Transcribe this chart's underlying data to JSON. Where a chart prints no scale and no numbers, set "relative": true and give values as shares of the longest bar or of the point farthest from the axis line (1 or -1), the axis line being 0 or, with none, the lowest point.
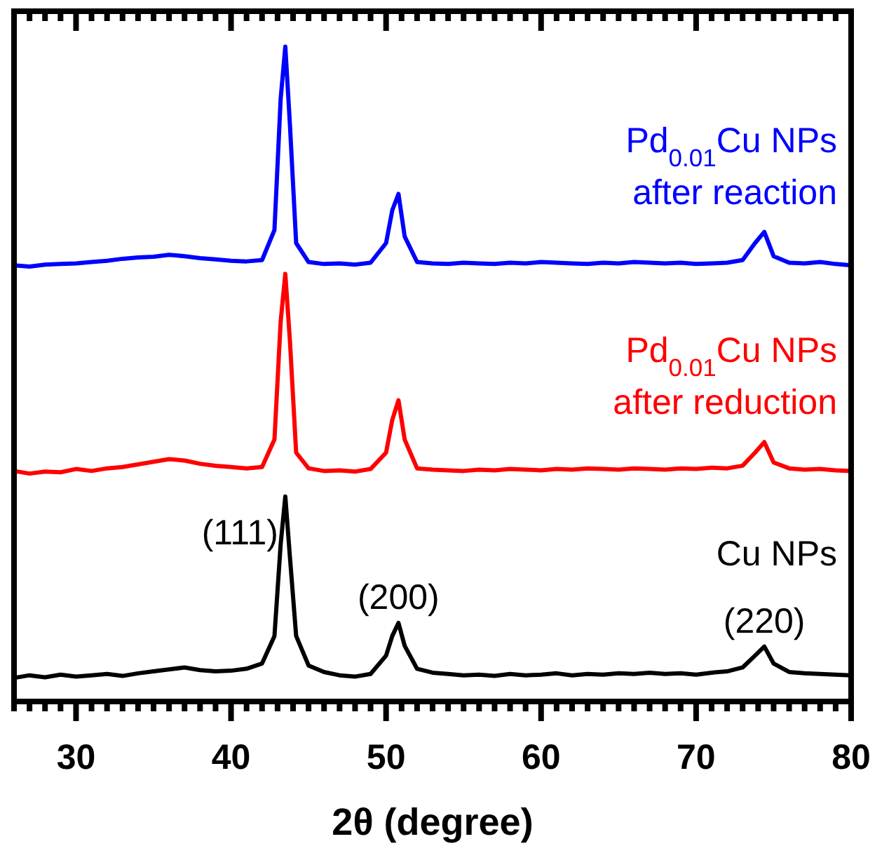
{
  "chart_data": {
    "type": "line",
    "relative": true,
    "xlabel": "2θ (degree)",
    "xlim": [
      26,
      80
    ],
    "xticks": [
      {
        "value": 26,
        "label": null
      },
      {
        "value": 27,
        "label": null
      },
      {
        "value": 28,
        "label": null
      },
      {
        "value": 29,
        "label": null
      },
      30,
      {
        "value": 31,
        "label": null
      },
      {
        "value": 32,
        "label": null
      },
      {
        "value": 33,
        "label": null
      },
      {
        "value": 34,
        "label": null
      },
      {
        "value": 35,
        "label": null
      },
      {
        "value": 36,
        "label": null
      },
      {
        "value": 37,
        "label": null
      },
      {
        "value": 38,
        "label": null
      },
      {
        "value": 39,
        "label": null
      },
      40,
      {
        "value": 41,
        "label": null
      },
      {
        "value": 42,
        "label": null
      },
      {
        "value": 43,
        "label": null
      },
      {
        "value": 44,
        "label": null
      },
      {
        "value": 45,
        "label": null
      },
      {
        "value": 46,
        "label": null
      },
      {
        "value": 47,
        "label": null
      },
      {
        "value": 48,
        "label": null
      },
      {
        "value": 49,
        "label": null
      },
      50,
      {
        "value": 51,
        "label": null
      },
      {
        "value": 52,
        "label": null
      },
      {
        "value": 53,
        "label": null
      },
      {
        "value": 54,
        "label": null
      },
      {
        "value": 55,
        "label": null
      },
      {
        "value": 56,
        "label": null
      },
      {
        "value": 57,
        "label": null
      },
      {
        "value": 58,
        "label": null
      },
      {
        "value": 59,
        "label": null
      },
      60,
      {
        "value": 61,
        "label": null
      },
      {
        "value": 62,
        "label": null
      },
      {
        "value": 63,
        "label": null
      },
      {
        "value": 64,
        "label": null
      },
      {
        "value": 65,
        "label": null
      },
      {
        "value": 66,
        "label": null
      },
      {
        "value": 67,
        "label": null
      },
      {
        "value": 68,
        "label": null
      },
      {
        "value": 69,
        "label": null
      },
      70,
      {
        "value": 71,
        "label": null
      },
      {
        "value": 72,
        "label": null
      },
      {
        "value": 73,
        "label": null
      },
      {
        "value": 74,
        "label": null
      },
      {
        "value": 75,
        "label": null
      },
      {
        "value": 76,
        "label": null
      },
      {
        "value": 77,
        "label": null
      },
      {
        "value": 78,
        "label": null
      },
      {
        "value": 79,
        "label": null
      },
      80
    ],
    "tick_labels": "x",
    "grid": false,
    "marker": "none",
    "line_style": "solid",
    "x": [
      26,
      27,
      28,
      29,
      30,
      31,
      32,
      33,
      34,
      35,
      36,
      37,
      38,
      39,
      40,
      41,
      42,
      42.8,
      43.2,
      43.5,
      43.8,
      44.2,
      45,
      46,
      47,
      48,
      49,
      50,
      50.4,
      50.8,
      51.2,
      52,
      53,
      54,
      55,
      56,
      57,
      58,
      59,
      60,
      61,
      62,
      63,
      64,
      65,
      66,
      67,
      68,
      69,
      70,
      71,
      72,
      73,
      73.8,
      74.4,
      75,
      76,
      77,
      78,
      79,
      80
    ],
    "series": [
      {
        "name": "Pd$_{0.01}$Cu NPs\nafter reaction",
        "color": "#0000ff",
        "values": [
          0.666,
          0.664,
          0.667,
          0.668,
          0.669,
          0.671,
          0.673,
          0.676,
          0.678,
          0.679,
          0.682,
          0.68,
          0.677,
          0.675,
          0.673,
          0.672,
          0.674,
          0.72,
          0.92,
          1,
          0.88,
          0.7,
          0.671,
          0.668,
          0.669,
          0.667,
          0.67,
          0.7,
          0.75,
          0.775,
          0.71,
          0.671,
          0.669,
          0.668,
          0.67,
          0.669,
          0.668,
          0.67,
          0.669,
          0.671,
          0.67,
          0.669,
          0.668,
          0.67,
          0.669,
          0.671,
          0.67,
          0.669,
          0.67,
          0.668,
          0.669,
          0.67,
          0.674,
          0.7,
          0.717,
          0.68,
          0.67,
          0.669,
          0.671,
          0.668,
          0.666
        ]
      },
      {
        "name": "Pd$_{0.01}$Cu NPs\nafter reduction",
        "color": "#ff0000",
        "values": [
          0.352,
          0.348,
          0.351,
          0.35,
          0.355,
          0.352,
          0.356,
          0.358,
          0.362,
          0.366,
          0.37,
          0.368,
          0.363,
          0.36,
          0.358,
          0.356,
          0.358,
          0.4,
          0.58,
          0.653,
          0.55,
          0.38,
          0.356,
          0.352,
          0.353,
          0.351,
          0.355,
          0.38,
          0.43,
          0.46,
          0.4,
          0.356,
          0.354,
          0.353,
          0.352,
          0.354,
          0.353,
          0.355,
          0.354,
          0.353,
          0.355,
          0.354,
          0.356,
          0.355,
          0.354,
          0.356,
          0.355,
          0.354,
          0.356,
          0.355,
          0.357,
          0.356,
          0.36,
          0.38,
          0.396,
          0.365,
          0.356,
          0.354,
          0.355,
          0.353,
          0.352
        ]
      },
      {
        "name": "Cu NPs",
        "color": "#000000",
        "values": [
          0.036,
          0.04,
          0.037,
          0.041,
          0.038,
          0.04,
          0.042,
          0.039,
          0.043,
          0.046,
          0.049,
          0.052,
          0.048,
          0.046,
          0.047,
          0.05,
          0.058,
          0.1,
          0.24,
          0.313,
          0.22,
          0.1,
          0.055,
          0.045,
          0.04,
          0.038,
          0.042,
          0.07,
          0.1,
          0.12,
          0.085,
          0.05,
          0.044,
          0.042,
          0.04,
          0.041,
          0.039,
          0.042,
          0.04,
          0.041,
          0.043,
          0.04,
          0.042,
          0.041,
          0.043,
          0.042,
          0.044,
          0.042,
          0.043,
          0.041,
          0.044,
          0.046,
          0.052,
          0.07,
          0.084,
          0.058,
          0.045,
          0.043,
          0.042,
          0.041,
          0.04
        ]
      }
    ],
    "annotations": [
      {
        "text": "(111)",
        "x": 43.5,
        "y": 0.313
      },
      {
        "text": "(200)",
        "x": 50.8,
        "y": 0.12
      },
      {
        "text": "(220)",
        "x": 74.4,
        "y": 0.084
      }
    ]
  }
}
